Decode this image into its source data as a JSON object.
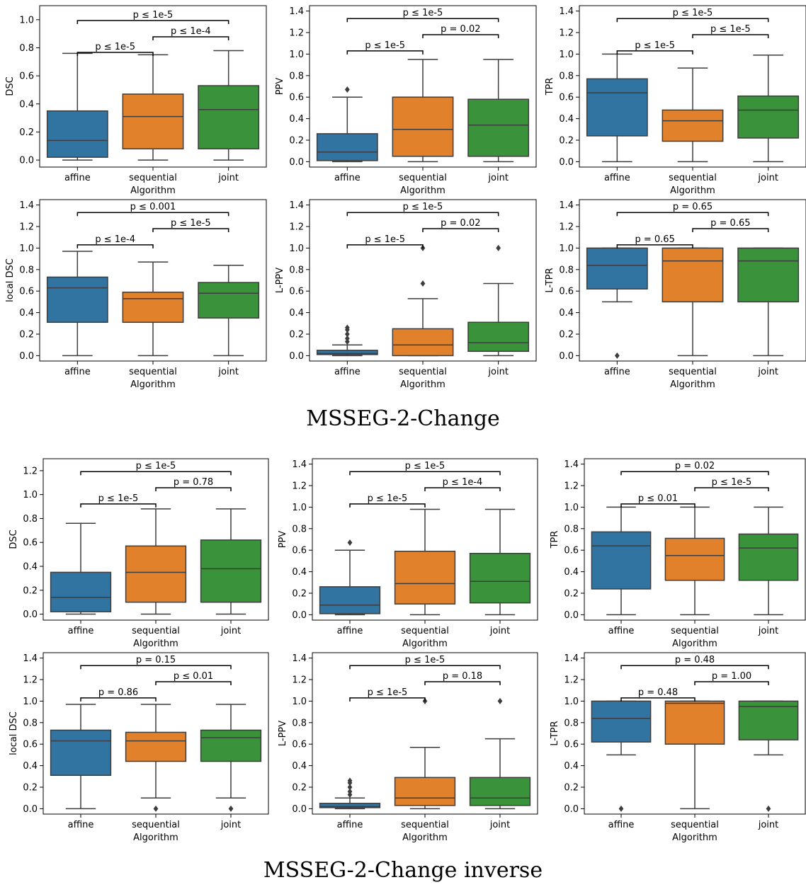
{
  "palette": {
    "affine": "#3274a1",
    "sequential": "#e1812c",
    "joint": "#3a923a"
  },
  "captions": [
    "MSSEG-2-Change",
    "MSSEG-2-Change inverse"
  ],
  "chart_data": [
    {
      "type": "box",
      "group": "MSSEG-2-Change",
      "ylabel": "DSC",
      "xlabel": "Algorithm",
      "ylim": [
        -0.05,
        1.1
      ],
      "yticks": [
        0.0,
        0.2,
        0.4,
        0.6,
        0.8,
        1.0
      ],
      "categories": [
        "affine",
        "sequential",
        "joint"
      ],
      "boxes": [
        {
          "whislo": 0.0,
          "q1": 0.02,
          "med": 0.14,
          "q3": 0.35,
          "whishi": 0.76,
          "fliers": []
        },
        {
          "whislo": 0.0,
          "q1": 0.08,
          "med": 0.31,
          "q3": 0.47,
          "whishi": 0.75,
          "fliers": []
        },
        {
          "whislo": 0.0,
          "q1": 0.08,
          "med": 0.36,
          "q3": 0.53,
          "whishi": 0.78,
          "fliers": []
        }
      ],
      "annotations": [
        {
          "from": 0,
          "to": 1,
          "level": 1,
          "text": "p ≤ 1e-5"
        },
        {
          "from": 1,
          "to": 2,
          "level": 2,
          "text": "p ≤ 1e-4"
        },
        {
          "from": 0,
          "to": 2,
          "level": 3,
          "text": "p ≤ 1e-5"
        }
      ]
    },
    {
      "type": "box",
      "group": "MSSEG-2-Change",
      "ylabel": "PPV",
      "xlabel": "Algorithm",
      "ylim": [
        -0.05,
        1.45
      ],
      "yticks": [
        0.0,
        0.2,
        0.4,
        0.6,
        0.8,
        1.0,
        1.2,
        1.4
      ],
      "categories": [
        "affine",
        "sequential",
        "joint"
      ],
      "boxes": [
        {
          "whislo": 0.0,
          "q1": 0.01,
          "med": 0.09,
          "q3": 0.26,
          "whishi": 0.6,
          "fliers": [
            0.67
          ]
        },
        {
          "whislo": 0.0,
          "q1": 0.05,
          "med": 0.3,
          "q3": 0.6,
          "whishi": 0.95,
          "fliers": []
        },
        {
          "whislo": 0.0,
          "q1": 0.05,
          "med": 0.34,
          "q3": 0.58,
          "whishi": 0.95,
          "fliers": []
        }
      ],
      "annotations": [
        {
          "from": 0,
          "to": 1,
          "level": 1,
          "text": "p ≤ 1e-5"
        },
        {
          "from": 1,
          "to": 2,
          "level": 2,
          "text": "p = 0.02"
        },
        {
          "from": 0,
          "to": 2,
          "level": 3,
          "text": "p ≤ 1e-5"
        }
      ]
    },
    {
      "type": "box",
      "group": "MSSEG-2-Change",
      "ylabel": "TPR",
      "xlabel": "Algorithm",
      "ylim": [
        -0.05,
        1.45
      ],
      "yticks": [
        0.0,
        0.2,
        0.4,
        0.6,
        0.8,
        1.0,
        1.2,
        1.4
      ],
      "categories": [
        "affine",
        "sequential",
        "joint"
      ],
      "boxes": [
        {
          "whislo": 0.0,
          "q1": 0.24,
          "med": 0.64,
          "q3": 0.77,
          "whishi": 1.0,
          "fliers": []
        },
        {
          "whislo": 0.0,
          "q1": 0.19,
          "med": 0.38,
          "q3": 0.48,
          "whishi": 0.87,
          "fliers": []
        },
        {
          "whislo": 0.0,
          "q1": 0.22,
          "med": 0.48,
          "q3": 0.61,
          "whishi": 0.99,
          "fliers": []
        }
      ],
      "annotations": [
        {
          "from": 0,
          "to": 1,
          "level": 1,
          "text": "p ≤ 1e-5"
        },
        {
          "from": 1,
          "to": 2,
          "level": 2,
          "text": "p ≤ 1e-5"
        },
        {
          "from": 0,
          "to": 2,
          "level": 3,
          "text": "p ≤ 1e-5"
        }
      ]
    },
    {
      "type": "box",
      "group": "MSSEG-2-Change",
      "ylabel": "local DSC",
      "xlabel": "Algorithm",
      "ylim": [
        -0.05,
        1.45
      ],
      "yticks": [
        0.0,
        0.2,
        0.4,
        0.6,
        0.8,
        1.0,
        1.2,
        1.4
      ],
      "categories": [
        "affine",
        "sequential",
        "joint"
      ],
      "boxes": [
        {
          "whislo": 0.0,
          "q1": 0.31,
          "med": 0.63,
          "q3": 0.73,
          "whishi": 0.97,
          "fliers": []
        },
        {
          "whislo": 0.0,
          "q1": 0.31,
          "med": 0.53,
          "q3": 0.59,
          "whishi": 0.87,
          "fliers": []
        },
        {
          "whislo": 0.0,
          "q1": 0.35,
          "med": 0.58,
          "q3": 0.68,
          "whishi": 0.84,
          "fliers": []
        }
      ],
      "annotations": [
        {
          "from": 0,
          "to": 1,
          "level": 1,
          "text": "p ≤ 1e-4"
        },
        {
          "from": 1,
          "to": 2,
          "level": 2,
          "text": "p ≤ 1e-5"
        },
        {
          "from": 0,
          "to": 2,
          "level": 3,
          "text": "p ≤ 0.001"
        }
      ]
    },
    {
      "type": "box",
      "group": "MSSEG-2-Change",
      "ylabel": "L-PPV",
      "xlabel": "Algorithm",
      "ylim": [
        -0.05,
        1.45
      ],
      "yticks": [
        0.0,
        0.2,
        0.4,
        0.6,
        0.8,
        1.0,
        1.2,
        1.4
      ],
      "categories": [
        "affine",
        "sequential",
        "joint"
      ],
      "boxes": [
        {
          "whislo": 0.0,
          "q1": 0.01,
          "med": 0.02,
          "q3": 0.05,
          "whishi": 0.1,
          "fliers": [
            0.13,
            0.16,
            0.2,
            0.24,
            0.26
          ]
        },
        {
          "whislo": 0.0,
          "q1": 0.0,
          "med": 0.1,
          "q3": 0.25,
          "whishi": 0.53,
          "fliers": [
            0.67,
            1.0
          ]
        },
        {
          "whislo": 0.0,
          "q1": 0.04,
          "med": 0.12,
          "q3": 0.31,
          "whishi": 0.67,
          "fliers": [
            1.0
          ]
        }
      ],
      "annotations": [
        {
          "from": 0,
          "to": 1,
          "level": 1,
          "text": "p ≤ 1e-5"
        },
        {
          "from": 1,
          "to": 2,
          "level": 2,
          "text": "p = 0.02"
        },
        {
          "from": 0,
          "to": 2,
          "level": 3,
          "text": "p ≤ 1e-5"
        }
      ]
    },
    {
      "type": "box",
      "group": "MSSEG-2-Change",
      "ylabel": "L-TPR",
      "xlabel": "Algorithm",
      "ylim": [
        -0.05,
        1.45
      ],
      "yticks": [
        0.0,
        0.2,
        0.4,
        0.6,
        0.8,
        1.0,
        1.2,
        1.4
      ],
      "categories": [
        "affine",
        "sequential",
        "joint"
      ],
      "boxes": [
        {
          "whislo": 0.5,
          "q1": 0.62,
          "med": 0.84,
          "q3": 1.0,
          "whishi": 1.0,
          "fliers": [
            0.0
          ]
        },
        {
          "whislo": 0.0,
          "q1": 0.5,
          "med": 0.88,
          "q3": 1.0,
          "whishi": 1.0,
          "fliers": []
        },
        {
          "whislo": 0.0,
          "q1": 0.5,
          "med": 0.88,
          "q3": 1.0,
          "whishi": 1.0,
          "fliers": []
        }
      ],
      "annotations": [
        {
          "from": 0,
          "to": 1,
          "level": 1,
          "text": "p = 0.65"
        },
        {
          "from": 1,
          "to": 2,
          "level": 2,
          "text": "p = 0.65"
        },
        {
          "from": 0,
          "to": 2,
          "level": 3,
          "text": "p = 0.65"
        }
      ]
    },
    {
      "type": "box",
      "group": "MSSEG-2-Change inverse",
      "ylabel": "DSC",
      "xlabel": "Algorithm",
      "ylim": [
        -0.05,
        1.3
      ],
      "yticks": [
        0.0,
        0.2,
        0.4,
        0.6,
        0.8,
        1.0,
        1.2
      ],
      "categories": [
        "affine",
        "sequential",
        "joint"
      ],
      "boxes": [
        {
          "whislo": 0.0,
          "q1": 0.02,
          "med": 0.14,
          "q3": 0.35,
          "whishi": 0.76,
          "fliers": []
        },
        {
          "whislo": 0.0,
          "q1": 0.1,
          "med": 0.35,
          "q3": 0.57,
          "whishi": 0.88,
          "fliers": []
        },
        {
          "whislo": 0.0,
          "q1": 0.1,
          "med": 0.38,
          "q3": 0.62,
          "whishi": 0.88,
          "fliers": []
        }
      ],
      "annotations": [
        {
          "from": 0,
          "to": 1,
          "level": 1,
          "text": "p ≤ 1e-5"
        },
        {
          "from": 1,
          "to": 2,
          "level": 2,
          "text": "p = 0.78"
        },
        {
          "from": 0,
          "to": 2,
          "level": 3,
          "text": "p ≤ 1e-5"
        }
      ]
    },
    {
      "type": "box",
      "group": "MSSEG-2-Change inverse",
      "ylabel": "PPV",
      "xlabel": "Algorithm",
      "ylim": [
        -0.05,
        1.45
      ],
      "yticks": [
        0.0,
        0.2,
        0.4,
        0.6,
        0.8,
        1.0,
        1.2,
        1.4
      ],
      "categories": [
        "affine",
        "sequential",
        "joint"
      ],
      "boxes": [
        {
          "whislo": 0.0,
          "q1": 0.01,
          "med": 0.09,
          "q3": 0.26,
          "whishi": 0.6,
          "fliers": [
            0.67
          ]
        },
        {
          "whislo": 0.0,
          "q1": 0.1,
          "med": 0.29,
          "q3": 0.59,
          "whishi": 0.98,
          "fliers": []
        },
        {
          "whislo": 0.0,
          "q1": 0.11,
          "med": 0.31,
          "q3": 0.57,
          "whishi": 0.98,
          "fliers": []
        }
      ],
      "annotations": [
        {
          "from": 0,
          "to": 1,
          "level": 1,
          "text": "p ≤ 1e-5"
        },
        {
          "from": 1,
          "to": 2,
          "level": 2,
          "text": "p ≤ 1e-4"
        },
        {
          "from": 0,
          "to": 2,
          "level": 3,
          "text": "p ≤ 1e-5"
        }
      ]
    },
    {
      "type": "box",
      "group": "MSSEG-2-Change inverse",
      "ylabel": "TPR",
      "xlabel": "Algorithm",
      "ylim": [
        -0.05,
        1.45
      ],
      "yticks": [
        0.0,
        0.2,
        0.4,
        0.6,
        0.8,
        1.0,
        1.2,
        1.4
      ],
      "categories": [
        "affine",
        "sequential",
        "joint"
      ],
      "boxes": [
        {
          "whislo": 0.0,
          "q1": 0.24,
          "med": 0.64,
          "q3": 0.77,
          "whishi": 1.0,
          "fliers": []
        },
        {
          "whislo": 0.0,
          "q1": 0.32,
          "med": 0.55,
          "q3": 0.71,
          "whishi": 1.0,
          "fliers": []
        },
        {
          "whislo": 0.0,
          "q1": 0.32,
          "med": 0.62,
          "q3": 0.75,
          "whishi": 1.0,
          "fliers": []
        }
      ],
      "annotations": [
        {
          "from": 0,
          "to": 1,
          "level": 1,
          "text": "p ≤ 0.01"
        },
        {
          "from": 1,
          "to": 2,
          "level": 2,
          "text": "p ≤ 1e-5"
        },
        {
          "from": 0,
          "to": 2,
          "level": 3,
          "text": "p = 0.02"
        }
      ]
    },
    {
      "type": "box",
      "group": "MSSEG-2-Change inverse",
      "ylabel": "local DSC",
      "xlabel": "Algorithm",
      "ylim": [
        -0.05,
        1.45
      ],
      "yticks": [
        0.0,
        0.2,
        0.4,
        0.6,
        0.8,
        1.0,
        1.2,
        1.4
      ],
      "categories": [
        "affine",
        "sequential",
        "joint"
      ],
      "boxes": [
        {
          "whislo": 0.0,
          "q1": 0.31,
          "med": 0.63,
          "q3": 0.73,
          "whishi": 0.97,
          "fliers": []
        },
        {
          "whislo": 0.1,
          "q1": 0.44,
          "med": 0.63,
          "q3": 0.71,
          "whishi": 0.97,
          "fliers": [
            0.0
          ]
        },
        {
          "whislo": 0.1,
          "q1": 0.44,
          "med": 0.66,
          "q3": 0.73,
          "whishi": 0.97,
          "fliers": [
            0.0
          ]
        }
      ],
      "annotations": [
        {
          "from": 0,
          "to": 1,
          "level": 1,
          "text": "p = 0.86"
        },
        {
          "from": 1,
          "to": 2,
          "level": 2,
          "text": "p ≤ 0.01"
        },
        {
          "from": 0,
          "to": 2,
          "level": 3,
          "text": "p = 0.15"
        }
      ]
    },
    {
      "type": "box",
      "group": "MSSEG-2-Change inverse",
      "ylabel": "L-PPV",
      "xlabel": "Algorithm",
      "ylim": [
        -0.05,
        1.45
      ],
      "yticks": [
        0.0,
        0.2,
        0.4,
        0.6,
        0.8,
        1.0,
        1.2,
        1.4
      ],
      "categories": [
        "affine",
        "sequential",
        "joint"
      ],
      "boxes": [
        {
          "whislo": 0.0,
          "q1": 0.01,
          "med": 0.02,
          "q3": 0.05,
          "whishi": 0.1,
          "fliers": [
            0.13,
            0.16,
            0.2,
            0.24,
            0.26
          ]
        },
        {
          "whislo": 0.0,
          "q1": 0.03,
          "med": 0.1,
          "q3": 0.29,
          "whishi": 0.57,
          "fliers": [
            1.0
          ]
        },
        {
          "whislo": 0.0,
          "q1": 0.03,
          "med": 0.1,
          "q3": 0.29,
          "whishi": 0.65,
          "fliers": [
            1.0
          ]
        }
      ],
      "annotations": [
        {
          "from": 0,
          "to": 1,
          "level": 1,
          "text": "p ≤ 1e-5"
        },
        {
          "from": 1,
          "to": 2,
          "level": 2,
          "text": "p = 0.18"
        },
        {
          "from": 0,
          "to": 2,
          "level": 3,
          "text": "p ≤ 1e-5"
        }
      ]
    },
    {
      "type": "box",
      "group": "MSSEG-2-Change inverse",
      "ylabel": "L-TPR",
      "xlabel": "Algorithm",
      "ylim": [
        -0.05,
        1.45
      ],
      "yticks": [
        0.0,
        0.2,
        0.4,
        0.6,
        0.8,
        1.0,
        1.2,
        1.4
      ],
      "categories": [
        "affine",
        "sequential",
        "joint"
      ],
      "boxes": [
        {
          "whislo": 0.5,
          "q1": 0.62,
          "med": 0.84,
          "q3": 1.0,
          "whishi": 1.0,
          "fliers": [
            0.0
          ]
        },
        {
          "whislo": 0.0,
          "q1": 0.6,
          "med": 0.98,
          "q3": 1.0,
          "whishi": 1.0,
          "fliers": []
        },
        {
          "whislo": 0.5,
          "q1": 0.64,
          "med": 0.95,
          "q3": 1.0,
          "whishi": 1.0,
          "fliers": [
            0.0
          ]
        }
      ],
      "annotations": [
        {
          "from": 0,
          "to": 1,
          "level": 1,
          "text": "p = 0.48"
        },
        {
          "from": 1,
          "to": 2,
          "level": 2,
          "text": "p = 1.00"
        },
        {
          "from": 0,
          "to": 2,
          "level": 3,
          "text": "p = 0.48"
        }
      ]
    }
  ]
}
